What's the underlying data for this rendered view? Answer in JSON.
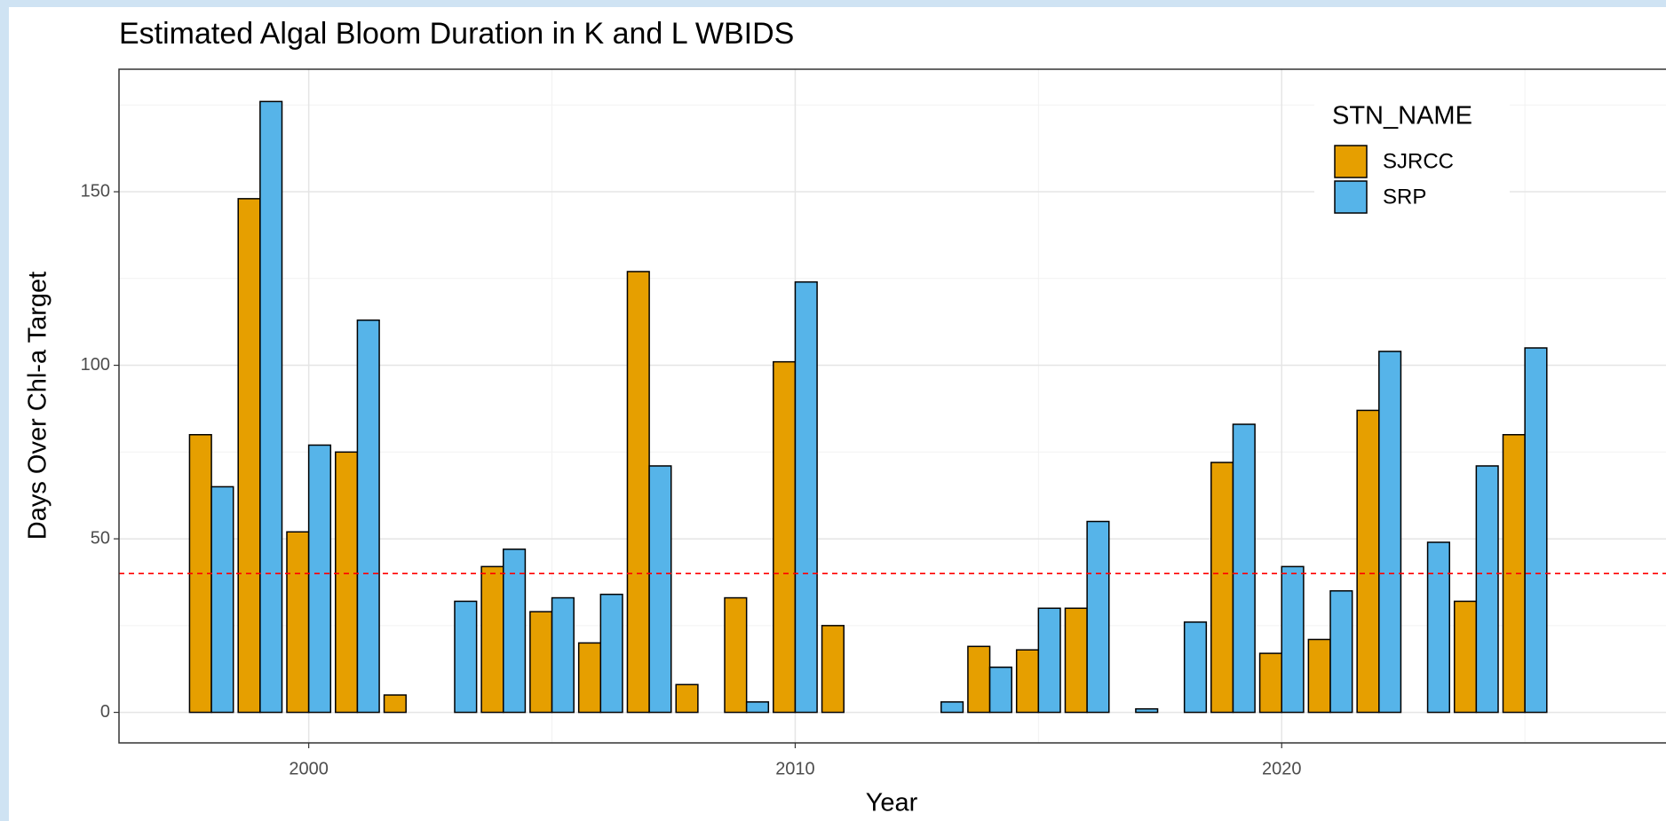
{
  "chart_data": {
    "type": "bar",
    "title": "Estimated Algal Bloom Duration in K and L WBIDS",
    "x_label": "Year",
    "y_label": "Days Over Chl-a Target",
    "legend_title": "STN_NAME",
    "legend_position": "top-right",
    "x": [
      1998,
      1999,
      2000,
      2001,
      2002,
      2003,
      2004,
      2005,
      2006,
      2007,
      2008,
      2009,
      2010,
      2011,
      2012,
      2013,
      2014,
      2015,
      2016,
      2017,
      2018,
      2019,
      2020,
      2021,
      2022,
      2023,
      2024,
      2025,
      2026
    ],
    "series": [
      {
        "name": "SJRCC",
        "color": "#e69f00",
        "values": [
          80,
          148,
          52,
          75,
          5,
          0,
          42,
          29,
          20,
          127,
          8,
          33,
          101,
          25,
          0,
          0,
          19,
          18,
          30,
          0,
          0,
          72,
          17,
          21,
          87,
          0,
          32,
          80,
          0
        ]
      },
      {
        "name": "SRP",
        "color": "#56b4e9",
        "values": [
          65,
          176,
          77,
          113,
          0,
          32,
          47,
          33,
          34,
          71,
          0,
          3,
          124,
          0,
          0,
          3,
          13,
          30,
          55,
          1,
          26,
          83,
          42,
          35,
          104,
          49,
          71,
          105,
          0
        ]
      }
    ],
    "hline": 40,
    "hline_color": "#ff0000",
    "xlim": [
      1996.1,
      2027.9
    ],
    "ylim": [
      -8.8,
      185.3
    ],
    "xticks": [
      2000,
      2010,
      2020
    ],
    "yticks": [
      0,
      50,
      100,
      150
    ],
    "minor_xticks": [
      2005,
      2015,
      2025
    ],
    "minor_yticks": [
      25,
      75,
      125,
      175
    ],
    "grid": true
  }
}
